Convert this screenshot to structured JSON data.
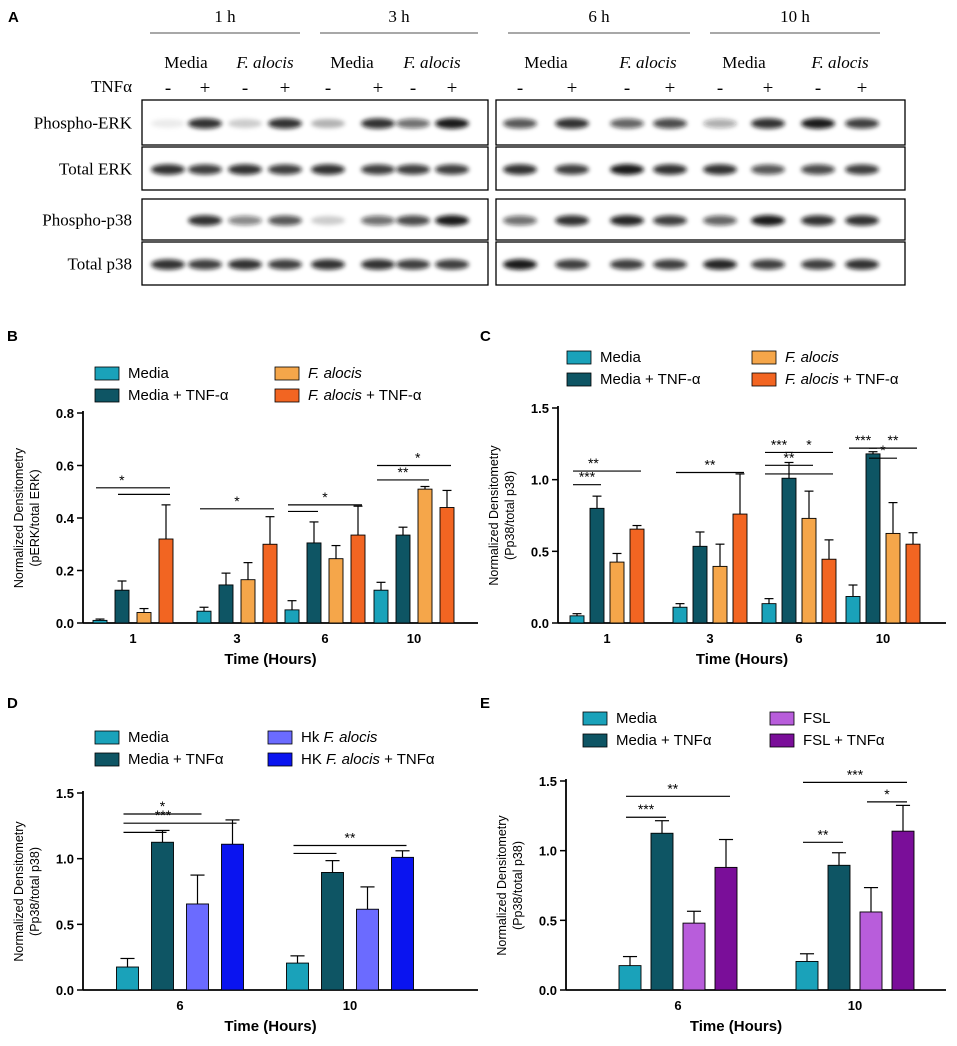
{
  "colors": {
    "media": "#1AA2BA",
    "media_tnf": "#0E5564",
    "falocis": "#F5A64A",
    "falocis_tnf": "#F26522",
    "hk_falocis": "#6B6BFF",
    "hk_falocis_tnf": "#0A14F0",
    "fsl": "#B85DDB",
    "fsl_tnf": "#7A0E99",
    "axis": "#000000",
    "blot_bg": "#ffffff"
  },
  "panel_a": {
    "panel_label": "A",
    "time_headers": [
      "1 h",
      "3 h",
      "6 h",
      "10 h"
    ],
    "media_label": "Media",
    "falocis_label": "F. alocis",
    "tnf_label": "TNFα",
    "signs": [
      "-",
      "+",
      "-",
      "+",
      "-",
      "+",
      "-",
      "+",
      "-",
      "+",
      "-",
      "+",
      "-",
      "+",
      "-",
      "+"
    ],
    "rows": [
      "Phospho-ERK",
      "Total ERK",
      "Phospho-p38",
      "Total p38"
    ],
    "band_intensity": [
      [
        0.08,
        0.85,
        0.2,
        0.85,
        0.3,
        0.85,
        0.6,
        0.95,
        0.7,
        0.85,
        0.65,
        0.75,
        0.35,
        0.85,
        0.95,
        0.8
      ],
      [
        0.85,
        0.8,
        0.85,
        0.8,
        0.85,
        0.8,
        0.8,
        0.8,
        0.85,
        0.8,
        0.95,
        0.85,
        0.85,
        0.7,
        0.75,
        0.8
      ],
      [
        0.0,
        0.85,
        0.5,
        0.7,
        0.2,
        0.6,
        0.75,
        0.95,
        0.6,
        0.85,
        0.9,
        0.8,
        0.65,
        0.95,
        0.85,
        0.85
      ],
      [
        0.85,
        0.8,
        0.85,
        0.8,
        0.85,
        0.85,
        0.8,
        0.8,
        0.95,
        0.8,
        0.8,
        0.8,
        0.9,
        0.8,
        0.8,
        0.85
      ]
    ]
  },
  "chart_data": [
    {
      "id": "B",
      "panel_label": "B",
      "type": "bar",
      "xlabel": "Time (Hours)",
      "ylabel_line1": "Normalized Densitometry",
      "ylabel_line2": "(pERK/total ERK)",
      "ylim": [
        0,
        0.8
      ],
      "yticks": [
        "0.0",
        "0.2",
        "0.4",
        "0.6",
        "0.8"
      ],
      "categories": [
        "1",
        "3",
        "6",
        "10"
      ],
      "legend": [
        "Media",
        "Media + TNF-α",
        "F. alocis",
        "F. alocis + TNF-α"
      ],
      "series": [
        {
          "name": "Media",
          "values": [
            0.01,
            0.045,
            0.05,
            0.125
          ],
          "errors": [
            0.005,
            0.015,
            0.035,
            0.03
          ]
        },
        {
          "name": "Media + TNF-α",
          "values": [
            0.125,
            0.145,
            0.305,
            0.335
          ],
          "errors": [
            0.035,
            0.045,
            0.08,
            0.03
          ]
        },
        {
          "name": "F. alocis",
          "values": [
            0.04,
            0.165,
            0.245,
            0.51
          ],
          "errors": [
            0.015,
            0.065,
            0.05,
            0.01
          ]
        },
        {
          "name": "F. alocis + TNF-α",
          "values": [
            0.32,
            0.3,
            0.335,
            0.44
          ],
          "errors": [
            0.13,
            0.105,
            0.11,
            0.065
          ]
        }
      ],
      "significance": [
        {
          "label": "*",
          "group": 0,
          "from": 0,
          "to": 3,
          "y": 0.515,
          "long": true,
          "mark_at": 0.35
        },
        {
          "label": "",
          "group": 0,
          "from": 1,
          "to": 3,
          "y": 0.49
        },
        {
          "label": "*",
          "group": 1,
          "from": 0,
          "to": 3,
          "y": 0.435
        },
        {
          "label": "*",
          "group": 2,
          "from": 0,
          "to": 3,
          "y": 0.45,
          "mark_at": 0.5
        },
        {
          "label": "",
          "group": 2,
          "from": 0,
          "to": 1,
          "y": 0.425
        },
        {
          "label": "*",
          "group": 3,
          "from": 0,
          "to": 3,
          "y": 0.6,
          "mark_at": 0.55
        },
        {
          "label": "**",
          "group": 3,
          "from": 0,
          "to": 2,
          "y": 0.545
        }
      ]
    },
    {
      "id": "C",
      "panel_label": "C",
      "type": "bar",
      "xlabel": "Time (Hours)",
      "ylabel_line1": "Normalized Densitometry",
      "ylabel_line2": "(Pp38/total p38)",
      "ylim": [
        0,
        1.5
      ],
      "yticks": [
        "0.0",
        "0.5",
        "1.0",
        "1.5"
      ],
      "categories": [
        "1",
        "3",
        "6",
        "10"
      ],
      "legend": [
        "Media",
        "Media + TNF-α",
        "F. alocis",
        "F. alocis + TNF-α"
      ],
      "series": [
        {
          "name": "Media",
          "values": [
            0.05,
            0.11,
            0.135,
            0.185
          ],
          "errors": [
            0.015,
            0.025,
            0.035,
            0.08
          ]
        },
        {
          "name": "Media + TNF-α",
          "values": [
            0.8,
            0.535,
            1.01,
            1.18
          ],
          "errors": [
            0.085,
            0.1,
            0.11,
            0.015
          ]
        },
        {
          "name": "F. alocis",
          "values": [
            0.425,
            0.395,
            0.73,
            0.625
          ],
          "errors": [
            0.06,
            0.155,
            0.19,
            0.215
          ]
        },
        {
          "name": "F. alocis + TNF-α",
          "values": [
            0.655,
            0.76,
            0.445,
            0.55
          ],
          "errors": [
            0.025,
            0.28,
            0.135,
            0.08
          ]
        }
      ],
      "significance": [
        {
          "label": "**",
          "group": 0,
          "from": 0,
          "to": 3,
          "y": 1.06,
          "mark_at": 0.3
        },
        {
          "label": "***",
          "group": 0,
          "from": 0,
          "to": 1,
          "y": 0.965
        },
        {
          "label": "**",
          "group": 1,
          "from": 0,
          "to": 3,
          "y": 1.05
        },
        {
          "label": "***",
          "group": 2,
          "from": 0,
          "to": 1,
          "y": 1.19
        },
        {
          "label": "*",
          "group": 2,
          "from": 1,
          "to": 3,
          "y": 1.19
        },
        {
          "label": "**",
          "group": 2,
          "from": 0,
          "to": 2,
          "y": 1.1
        },
        {
          "label": "",
          "group": 2,
          "from": 0,
          "to": 3,
          "y": 1.04
        },
        {
          "label": "***",
          "group": 3,
          "from": 0,
          "to": 1,
          "y": 1.22
        },
        {
          "label": "**",
          "group": 3,
          "from": 1,
          "to": 3,
          "y": 1.22
        },
        {
          "label": "*",
          "group": 3,
          "from": 1,
          "to": 2,
          "y": 1.15
        }
      ]
    },
    {
      "id": "D",
      "panel_label": "D",
      "type": "bar",
      "xlabel": "Time (Hours)",
      "ylabel_line1": "Normalized Densitometry",
      "ylabel_line2": "(Pp38/total p38)",
      "ylim": [
        0,
        1.5
      ],
      "yticks": [
        "0.0",
        "0.5",
        "1.0",
        "1.5"
      ],
      "categories": [
        "6",
        "10"
      ],
      "legend": [
        "Media",
        "Media + TNFα",
        "Hk F. alocis",
        "HK F. alocis + TNFα"
      ],
      "series": [
        {
          "name": "Media",
          "values": [
            0.175,
            0.205
          ],
          "errors": [
            0.065,
            0.055
          ]
        },
        {
          "name": "Media + TNFα",
          "values": [
            1.125,
            0.895
          ],
          "errors": [
            0.09,
            0.09
          ]
        },
        {
          "name": "Hk F. alocis",
          "values": [
            0.655,
            0.615
          ],
          "errors": [
            0.22,
            0.17
          ]
        },
        {
          "name": "HK F. alocis + TNFα",
          "values": [
            1.11,
            1.01
          ],
          "errors": [
            0.185,
            0.05
          ]
        }
      ],
      "significance": [
        {
          "label": "*",
          "group": 0,
          "from": 0,
          "to": 2,
          "y": 1.34
        },
        {
          "label": "***",
          "group": 0,
          "from": 0,
          "to": 3,
          "y": 1.27,
          "mark_at": 0.35
        },
        {
          "label": "",
          "group": 0,
          "from": 0,
          "to": 1,
          "y": 1.2
        },
        {
          "label": "**",
          "group": 1,
          "from": 0,
          "to": 3,
          "y": 1.1
        },
        {
          "label": "",
          "group": 1,
          "from": 0,
          "to": 1,
          "y": 1.04
        }
      ]
    },
    {
      "id": "E",
      "panel_label": "E",
      "type": "bar",
      "xlabel": "Time (Hours)",
      "ylabel_line1": "Normalized Densitometry",
      "ylabel_line2": "(Pp38/total p38)",
      "ylim": [
        0,
        1.5
      ],
      "yticks": [
        "0.0",
        "0.5",
        "1.0",
        "1.5"
      ],
      "categories": [
        "6",
        "10"
      ],
      "legend": [
        "Media",
        "Media + TNFα",
        "FSL",
        "FSL + TNFα"
      ],
      "series": [
        {
          "name": "Media",
          "values": [
            0.175,
            0.205
          ],
          "errors": [
            0.065,
            0.055
          ]
        },
        {
          "name": "Media + TNFα",
          "values": [
            1.125,
            0.895
          ],
          "errors": [
            0.09,
            0.09
          ]
        },
        {
          "name": "FSL",
          "values": [
            0.48,
            0.56
          ],
          "errors": [
            0.085,
            0.175
          ]
        },
        {
          "name": "FSL + TNFα",
          "values": [
            0.88,
            1.14
          ],
          "errors": [
            0.2,
            0.185
          ]
        }
      ],
      "significance": [
        {
          "label": "**",
          "group": 0,
          "from": 0,
          "to": 3,
          "y": 1.39,
          "mark_at": 0.45
        },
        {
          "label": "***",
          "group": 0,
          "from": 0,
          "to": 1,
          "y": 1.24
        },
        {
          "label": "***",
          "group": 1,
          "from": 0,
          "to": 3,
          "y": 1.49,
          "mark_at": 0.5
        },
        {
          "label": "*",
          "group": 1,
          "from": 2,
          "to": 3,
          "y": 1.35
        },
        {
          "label": "**",
          "group": 1,
          "from": 0,
          "to": 1,
          "y": 1.06
        }
      ]
    }
  ]
}
